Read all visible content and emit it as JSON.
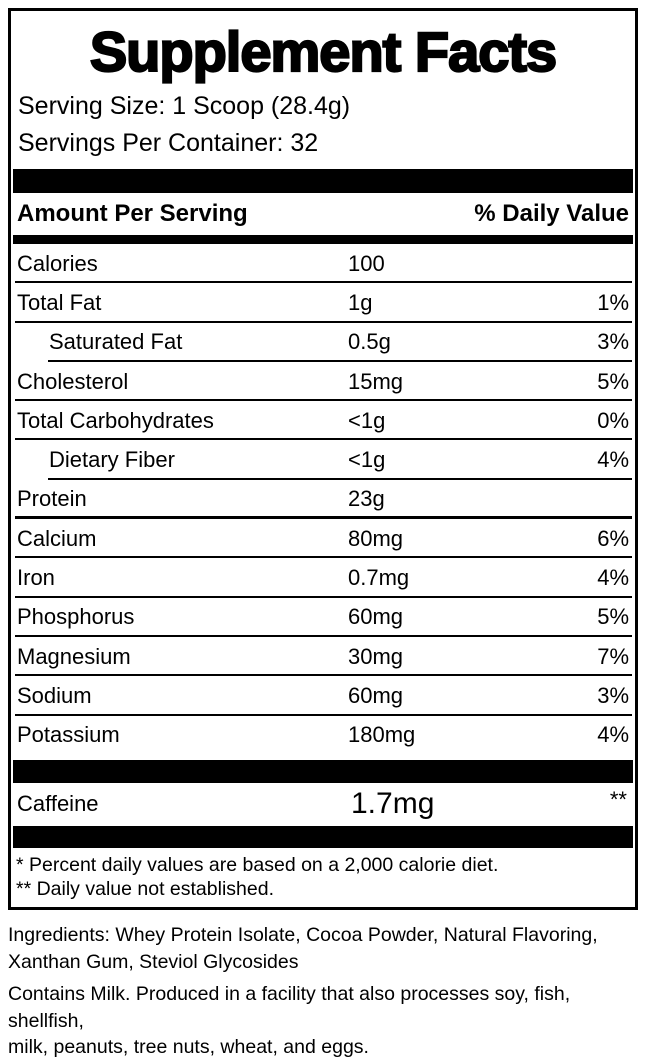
{
  "colors": {
    "ink": "#000000",
    "background": "#ffffff"
  },
  "label": {
    "title": "Supplement Facts",
    "serving_size": "Serving Size: 1 Scoop (28.4g)",
    "servings_per_container": "Servings Per Container: 32",
    "header": {
      "amount": "Amount Per Serving",
      "daily_value": "% Daily Value"
    },
    "rows": [
      {
        "name": "Calories",
        "amount": "100",
        "dv": "",
        "indent": false
      },
      {
        "name": "Total Fat",
        "amount": "1g",
        "dv": "1%",
        "indent": false
      },
      {
        "name": "Saturated Fat",
        "amount": "0.5g",
        "dv": "3%",
        "indent": true
      },
      {
        "name": "Cholesterol",
        "amount": "15mg",
        "dv": "5%",
        "indent": false
      },
      {
        "name": "Total Carbohydrates",
        "amount": "<1g",
        "dv": "0%",
        "indent": false
      },
      {
        "name": "Dietary Fiber",
        "amount": "<1g",
        "dv": "4%",
        "indent": true
      },
      {
        "name": "Protein",
        "amount": "23g",
        "dv": "",
        "indent": false,
        "sep_thick": true
      },
      {
        "name": "Calcium",
        "amount": "80mg",
        "dv": "6%",
        "indent": false
      },
      {
        "name": "Iron",
        "amount": "0.7mg",
        "dv": "4%",
        "indent": false
      },
      {
        "name": "Phosphorus",
        "amount": "60mg",
        "dv": "5%",
        "indent": false
      },
      {
        "name": "Magnesium",
        "amount": "30mg",
        "dv": "7%",
        "indent": false
      },
      {
        "name": "Sodium",
        "amount": "60mg",
        "dv": "3%",
        "indent": false
      },
      {
        "name": "Potassium",
        "amount": "180mg",
        "dv": "4%",
        "indent": false
      }
    ],
    "caffeine_row": {
      "name": "Caffeine",
      "amount": "1.7mg",
      "dv": "**"
    },
    "footnotes": [
      "* Percent daily values are based on a 2,000 calorie diet.",
      "** Daily value not established."
    ]
  },
  "below_label": {
    "ingredients_lines": [
      "Ingredients: Whey Protein Isolate, Cocoa Powder, Natural Flavoring,",
      "Xanthan Gum, Steviol Glycosides"
    ],
    "allergen_lines": [
      "Contains Milk. Produced in a facility that also processes soy, fish, shellfish,",
      "milk, peanuts, tree nuts, wheat, and eggs."
    ]
  }
}
